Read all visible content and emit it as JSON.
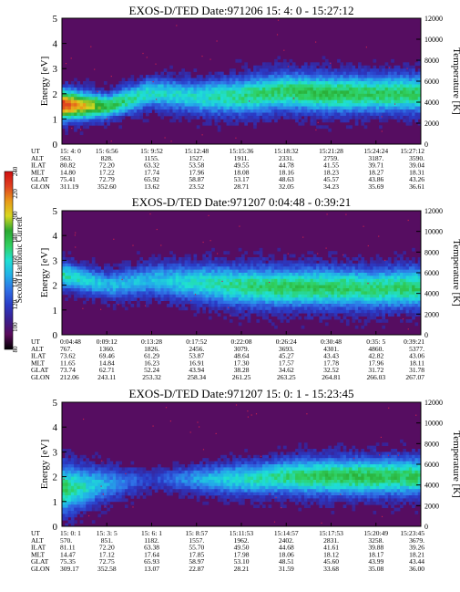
{
  "chart_data": [
    {
      "type": "heatmap",
      "title": "EXOS-D/TED   Date:971206  15: 4: 0 - 15:27:12",
      "ylabel": "Energy [eV]",
      "y2label": "Temperature [K]",
      "ylim": [
        0,
        5
      ],
      "y2lim": [
        0,
        12000
      ],
      "yticks": [
        "0",
        "1",
        "2",
        "3",
        "4",
        "5"
      ],
      "y2ticks": [
        "0",
        "2000",
        "4000",
        "6000",
        "8000",
        "10000",
        "12000"
      ],
      "band": {
        "center_ev": [
          1.55,
          1.5,
          2.05,
          1.85,
          1.9,
          2.1,
          2.0,
          2.0,
          2.0
        ],
        "half_width_ev": [
          0.55,
          0.45,
          0.55,
          0.6,
          0.7,
          0.7,
          0.7,
          0.7,
          0.7
        ],
        "peak_level": [
          230,
          180,
          160,
          160,
          170,
          175,
          180,
          175,
          175
        ]
      },
      "orbit": {
        "labels": [
          "UT",
          "ALT",
          "ILAT",
          "MLT",
          "GLAT",
          "GLON"
        ],
        "columns": [
          [
            "15: 4: 0",
            "563.",
            "80.82",
            "14.80",
            "75.41",
            "311.19"
          ],
          [
            "15: 6:56",
            "828.",
            "72.20",
            "17.22",
            "72.79",
            "352.60"
          ],
          [
            "15: 9:52",
            "1155.",
            "63.32",
            "17.74",
            "65.92",
            "13.62"
          ],
          [
            "15:12:48",
            "1527.",
            "53.58",
            "17.96",
            "58.87",
            "23.52"
          ],
          [
            "15:15:36",
            "1911.",
            "49.55",
            "18.08",
            "53.17",
            "28.71"
          ],
          [
            "15:18:32",
            "2331.",
            "44.78",
            "18.16",
            "48.63",
            "32.05"
          ],
          [
            "15:21:28",
            "2759.",
            "41.55",
            "18.23",
            "45.57",
            "34.23"
          ],
          [
            "15:24:24",
            "3187.",
            "39.71",
            "18.27",
            "43.86",
            "35.69"
          ],
          [
            "15:27:12",
            "3590.",
            "39.04",
            "18.31",
            "43.26",
            "36.61"
          ]
        ]
      }
    },
    {
      "type": "heatmap",
      "title": "EXOS-D/TED   Date:971207  0:04:48 - 0:39:21",
      "ylabel": "Energy [eV]",
      "y2label": "Temperature [K]",
      "ylim": [
        0,
        5
      ],
      "y2lim": [
        0,
        12000
      ],
      "yticks": [
        "0",
        "1",
        "2",
        "3",
        "4",
        "5"
      ],
      "y2ticks": [
        "0",
        "2000",
        "4000",
        "6000",
        "8000",
        "10000",
        "12000"
      ],
      "band": {
        "center_ev": [
          2.4,
          2.0,
          2.2,
          2.1,
          1.95,
          1.9,
          1.9,
          1.85,
          1.9
        ],
        "half_width_ev": [
          0.5,
          0.5,
          0.6,
          0.7,
          0.75,
          0.75,
          0.75,
          0.75,
          0.75
        ],
        "peak_level": [
          165,
          150,
          150,
          160,
          170,
          175,
          175,
          172,
          175
        ]
      },
      "orbit": {
        "labels": [
          "UT",
          "ALT",
          "ILAT",
          "MLT",
          "GLAT",
          "GLON"
        ],
        "columns": [
          [
            "0:04:48",
            "767.",
            "73.62",
            "11.65",
            "73.74",
            "212.06"
          ],
          [
            "0:09:12",
            "1360.",
            "69.46",
            "14.84",
            "62.71",
            "243.11"
          ],
          [
            "0:13:28",
            "1826.",
            "61.29",
            "16.23",
            "52.24",
            "253.32"
          ],
          [
            "0:17:52",
            "2456.",
            "53.87",
            "16.91",
            "43.94",
            "258.34"
          ],
          [
            "0:22:08",
            "3079.",
            "48.64",
            "17.30",
            "38.28",
            "261.25"
          ],
          [
            "0:26:24",
            "3693.",
            "45.27",
            "17.57",
            "34.62",
            "263.25"
          ],
          [
            "0:30:48",
            "4301.",
            "43.43",
            "17.78",
            "32.52",
            "264.81"
          ],
          [
            "0:35: 5",
            "4860.",
            "42.82",
            "17.96",
            "31.72",
            "266.03"
          ],
          [
            "0:39:21",
            "5377.",
            "43.06",
            "18.11",
            "31.78",
            "267.07"
          ]
        ]
      }
    },
    {
      "type": "heatmap",
      "title": "EXOS-D/TED   Date:971207  15: 0: 1 - 15:23:45",
      "ylabel": "Energy [eV]",
      "y2label": "Temperature [K]",
      "ylim": [
        0,
        5
      ],
      "y2lim": [
        0,
        12000
      ],
      "yticks": [
        "0",
        "1",
        "2",
        "3",
        "4",
        "5"
      ],
      "y2ticks": [
        "0",
        "2000",
        "4000",
        "6000",
        "8000",
        "10000",
        "12000"
      ],
      "band": {
        "center_ev": [
          1.5,
          1.7,
          1.9,
          1.9,
          1.9,
          2.0,
          2.0,
          2.0,
          2.0
        ],
        "half_width_ev": [
          0.9,
          0.6,
          0.4,
          0.5,
          0.6,
          0.65,
          0.7,
          0.7,
          0.7
        ],
        "peak_level": [
          175,
          145,
          120,
          145,
          160,
          170,
          178,
          178,
          175
        ]
      },
      "orbit": {
        "labels": [
          "UT",
          "ALT",
          "ILAT",
          "MLT",
          "GLAT",
          "GLON"
        ],
        "columns": [
          [
            "15: 0: 1",
            "570.",
            "81.11",
            "14.47",
            "75.35",
            "309.17"
          ],
          [
            "15: 3: 5",
            "851.",
            "72.20",
            "17.12",
            "72.75",
            "352.58"
          ],
          [
            "15: 6: 1",
            "1182.",
            "63.38",
            "17.64",
            "65.93",
            "13.07"
          ],
          [
            "15: 8:57",
            "1557.",
            "55.70",
            "17.85",
            "58.97",
            "22.87"
          ],
          [
            "15:11:53",
            "1962.",
            "49.50",
            "17.98",
            "53.10",
            "28.21"
          ],
          [
            "15:14:57",
            "2402.",
            "44.68",
            "18.06",
            "48.51",
            "31.59"
          ],
          [
            "15:17:53",
            "2831.",
            "41.61",
            "18.12",
            "45.60",
            "33.68"
          ],
          [
            "15:20:49",
            "3258.",
            "39.88",
            "18.17",
            "43.99",
            "35.08"
          ],
          [
            "15:23:45",
            "3679.",
            "39.26",
            "18.21",
            "43.44",
            "36.00"
          ]
        ]
      }
    }
  ],
  "colorbar": {
    "label": "Second Harmonic Current",
    "ticks": [
      "80",
      "100",
      "120",
      "140",
      "160",
      "180",
      "200",
      "220",
      "240"
    ],
    "range": [
      80,
      240
    ],
    "colors": [
      "#000000",
      "#5a0a5a",
      "#3b1f8f",
      "#2a3bc6",
      "#2f6fe6",
      "#22b0e8",
      "#1fe0d4",
      "#30d060",
      "#2aa830",
      "#d8d820",
      "#e89a18",
      "#e04020",
      "#d01010"
    ]
  }
}
